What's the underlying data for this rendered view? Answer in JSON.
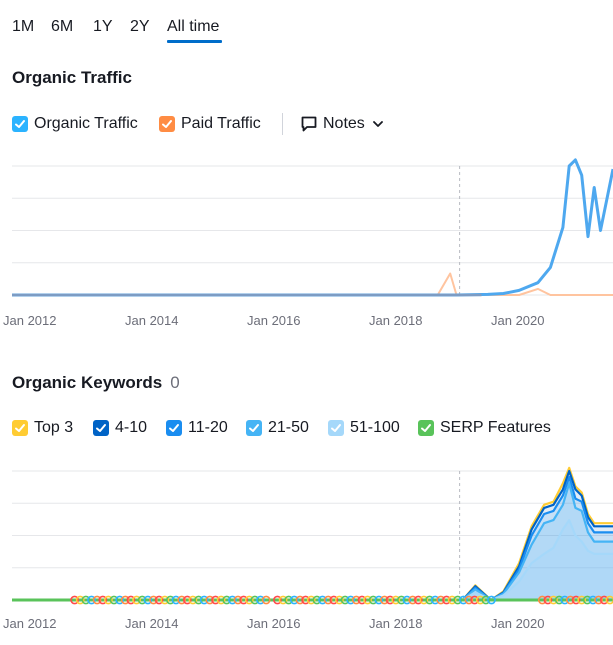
{
  "periods": [
    "1M",
    "6M",
    "1Y",
    "2Y",
    "All time"
  ],
  "active_period": "All time",
  "traffic": {
    "title": "Organic Traffic",
    "legend": [
      {
        "label": "Organic Traffic",
        "color": "#2bb3ff"
      },
      {
        "label": "Paid Traffic",
        "color": "#ff8c43"
      }
    ],
    "notes_label": "Notes",
    "x_ticks": [
      "Jan 2012",
      "Jan 2014",
      "Jan 2016",
      "Jan 2018",
      "Jan 2020"
    ]
  },
  "keywords": {
    "title": "Organic Keywords",
    "count": "0",
    "legend": [
      {
        "label": "Top 3",
        "color": "#ffcc33"
      },
      {
        "label": "4-10",
        "color": "#0063c6"
      },
      {
        "label": "11-20",
        "color": "#1a8df0"
      },
      {
        "label": "21-50",
        "color": "#45b4f5"
      },
      {
        "label": "51-100",
        "color": "#a5d8fa"
      },
      {
        "label": "SERP Features",
        "color": "#59c35a"
      }
    ],
    "x_ticks": [
      "Jan 2012",
      "Jan 2014",
      "Jan 2016",
      "Jan 2018",
      "Jan 2020"
    ]
  },
  "chart_data": [
    {
      "type": "line",
      "title": "Organic Traffic",
      "x": [
        2011.9,
        2012,
        2013,
        2014,
        2015,
        2016,
        2017,
        2018,
        2018.7,
        2018.9,
        2019,
        2019.5,
        2019.75,
        2020,
        2020.3,
        2020.5,
        2020.7,
        2020.8,
        2020.9,
        2021.0,
        2021.1,
        2021.2,
        2021.3,
        2021.5
      ],
      "series": [
        {
          "name": "Organic Traffic",
          "values": [
            0,
            0,
            0,
            0,
            0,
            0,
            0,
            0,
            0,
            0,
            0,
            0.02,
            0.05,
            0.15,
            0.4,
            0.9,
            2.2,
            4.2,
            4.4,
            3.9,
            1.9,
            3.5,
            2.1,
            4.1
          ]
        },
        {
          "name": "Paid Traffic",
          "values": [
            0,
            0,
            0,
            0,
            0,
            0,
            0,
            0,
            0,
            0.7,
            0,
            0,
            0,
            0,
            0.2,
            0,
            0,
            0,
            0,
            0,
            0,
            0,
            0,
            0
          ]
        }
      ],
      "xlim": [
        2011.9,
        2021.5
      ],
      "ylim": [
        0,
        4.2
      ],
      "annotation": "vertical dashed line near Jan 2019"
    },
    {
      "type": "area",
      "title": "Organic Keywords",
      "x": [
        2011.9,
        2018.2,
        2019.1,
        2019.3,
        2019.55,
        2019.75,
        2020,
        2020.2,
        2020.4,
        2020.55,
        2020.7,
        2020.8,
        2020.9,
        2021.0,
        2021.1,
        2021.2,
        2021.5
      ],
      "series": [
        {
          "name": "51-100",
          "values": [
            0,
            0,
            0,
            0.25,
            0,
            0.15,
            0.6,
            1.2,
            1.5,
            1.7,
            2.3,
            2.6,
            2.1,
            1.9,
            1.6,
            1.5,
            1.5
          ]
        },
        {
          "name": "21-50",
          "values": [
            0,
            0,
            0,
            0.35,
            0,
            0.2,
            0.9,
            1.8,
            2.5,
            2.6,
            3.1,
            3.8,
            3.0,
            2.9,
            2.2,
            1.9,
            1.9
          ]
        },
        {
          "name": "11-20",
          "values": [
            0,
            0,
            0,
            0.4,
            0,
            0.22,
            1.0,
            2.1,
            2.8,
            2.9,
            3.4,
            4.0,
            3.3,
            3.2,
            2.5,
            2.2,
            2.2
          ]
        },
        {
          "name": "4-10",
          "values": [
            0,
            0,
            0,
            0.45,
            0,
            0.25,
            1.1,
            2.3,
            3.0,
            3.1,
            3.6,
            4.2,
            3.6,
            3.4,
            2.7,
            2.4,
            2.4
          ]
        },
        {
          "name": "Top 3",
          "values": [
            0,
            0,
            0,
            0.48,
            0,
            0.28,
            1.2,
            2.4,
            3.1,
            3.2,
            3.8,
            4.3,
            3.7,
            3.5,
            2.8,
            2.5,
            2.5
          ]
        }
      ],
      "xlim": [
        2011.9,
        2021.5
      ],
      "ylim": [
        0,
        4.2
      ],
      "serp_features_band": "colored feature markers along the baseline from 2013 to 2021"
    }
  ]
}
